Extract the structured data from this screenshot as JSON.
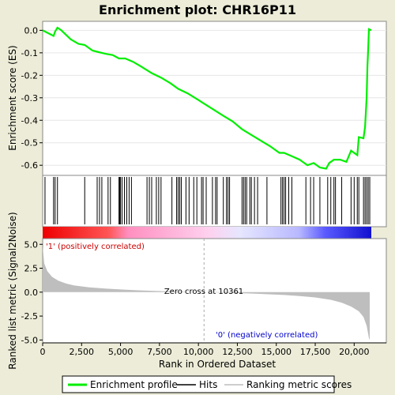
{
  "chart_data": {
    "type": "line",
    "title": "Enrichment plot: CHR16P11",
    "es_panel": {
      "ylabel": "Enrichment score (ES)",
      "yticks": [
        0.0,
        -0.1,
        -0.2,
        -0.3,
        -0.4,
        -0.5,
        -0.6
      ],
      "ytick_labels": [
        "0.0",
        "-0.1",
        "-0.2",
        "-0.3",
        "-0.4",
        "-0.5",
        "-0.6"
      ],
      "ylim": [
        -0.645,
        0.04
      ],
      "series": [
        {
          "name": "Enrichment profile",
          "color": "#00ee00",
          "points": [
            [
              0,
              0.0
            ],
            [
              700,
              -0.025
            ],
            [
              800,
              -0.005
            ],
            [
              950,
              0.012
            ],
            [
              1200,
              0.0
            ],
            [
              1800,
              -0.04
            ],
            [
              2300,
              -0.06
            ],
            [
              2700,
              -0.065
            ],
            [
              3200,
              -0.09
            ],
            [
              3600,
              -0.097
            ],
            [
              4100,
              -0.105
            ],
            [
              4500,
              -0.11
            ],
            [
              4900,
              -0.125
            ],
            [
              5300,
              -0.125
            ],
            [
              5800,
              -0.14
            ],
            [
              6300,
              -0.16
            ],
            [
              7000,
              -0.19
            ],
            [
              7600,
              -0.21
            ],
            [
              8200,
              -0.235
            ],
            [
              8700,
              -0.26
            ],
            [
              9300,
              -0.28
            ],
            [
              10000,
              -0.31
            ],
            [
              10800,
              -0.345
            ],
            [
              11600,
              -0.38
            ],
            [
              12200,
              -0.405
            ],
            [
              12800,
              -0.44
            ],
            [
              13400,
              -0.465
            ],
            [
              14000,
              -0.49
            ],
            [
              14600,
              -0.515
            ],
            [
              15200,
              -0.545
            ],
            [
              15500,
              -0.545
            ],
            [
              16000,
              -0.56
            ],
            [
              16500,
              -0.575
            ],
            [
              17000,
              -0.6
            ],
            [
              17400,
              -0.59
            ],
            [
              17800,
              -0.61
            ],
            [
              18200,
              -0.615
            ],
            [
              18400,
              -0.59
            ],
            [
              18700,
              -0.575
            ],
            [
              19100,
              -0.575
            ],
            [
              19500,
              -0.585
            ],
            [
              19800,
              -0.535
            ],
            [
              20200,
              -0.555
            ],
            [
              20300,
              -0.475
            ],
            [
              20600,
              -0.48
            ],
            [
              20700,
              -0.43
            ],
            [
              20800,
              -0.3
            ],
            [
              20850,
              -0.16
            ],
            [
              20900,
              -0.08
            ],
            [
              20950,
              0.005
            ],
            [
              21100,
              0.0
            ]
          ]
        }
      ]
    },
    "hits": [
      150,
      700,
      800,
      950,
      2700,
      3500,
      3650,
      3800,
      4200,
      4350,
      4900,
      4950,
      5000,
      5100,
      5250,
      5400,
      5550,
      5700,
      6700,
      6850,
      7000,
      7300,
      7450,
      7600,
      8300,
      8600,
      8700,
      8800,
      8900,
      9200,
      9400,
      9700,
      9900,
      10200,
      10300,
      10500,
      10900,
      11100,
      11200,
      11600,
      11800,
      11900,
      12000,
      12800,
      12900,
      13000,
      13100,
      13300,
      13400,
      13600,
      13800,
      14400,
      15300,
      15400,
      15500,
      15600,
      15800,
      16000,
      16900,
      17200,
      17400,
      17800,
      18300,
      18500,
      18700,
      18800,
      19200,
      19800,
      20000,
      20200,
      20300,
      20600,
      20700,
      20800,
      20900,
      21000
    ],
    "metric_panel": {
      "ylabel": "Ranked list metric (Signal2Noise)",
      "yticks": [
        5.0,
        2.5,
        0.0,
        -2.5,
        -5.0
      ],
      "ytick_labels": [
        "5.0",
        "2.5",
        "0.0",
        "-2.5",
        "-5.0"
      ],
      "ylim": [
        -5.3,
        5.6
      ],
      "series": [
        {
          "name": "Ranking metric scores",
          "color": "#bebebe",
          "points": [
            [
              0,
              4.8
            ],
            [
              100,
              3.0
            ],
            [
              300,
              2.2
            ],
            [
              600,
              1.6
            ],
            [
              1000,
              1.2
            ],
            [
              1500,
              0.9
            ],
            [
              2000,
              0.7
            ],
            [
              3000,
              0.5
            ],
            [
              4000,
              0.38
            ],
            [
              5000,
              0.28
            ],
            [
              6000,
              0.2
            ],
            [
              7000,
              0.14
            ],
            [
              8000,
              0.09
            ],
            [
              9000,
              0.05
            ],
            [
              10361,
              0.0
            ],
            [
              11500,
              -0.05
            ],
            [
              12500,
              -0.1
            ],
            [
              13500,
              -0.15
            ],
            [
              14500,
              -0.22
            ],
            [
              15500,
              -0.3
            ],
            [
              16500,
              -0.4
            ],
            [
              17500,
              -0.55
            ],
            [
              18500,
              -0.8
            ],
            [
              19200,
              -1.1
            ],
            [
              19800,
              -1.5
            ],
            [
              20300,
              -2.0
            ],
            [
              20600,
              -2.6
            ],
            [
              20800,
              -3.5
            ],
            [
              20950,
              -4.8
            ],
            [
              21000,
              -5.0
            ]
          ]
        }
      ],
      "zero_cross_label": "Zero cross at 10361",
      "zero_cross": 10361,
      "pos_label": "'1' (positively correlated)",
      "neg_label": "'0' (negatively correlated)"
    },
    "xlabel": "Rank in Ordered Dataset",
    "xticks": [
      0,
      2500,
      5000,
      7500,
      10000,
      12500,
      15000,
      17500,
      20000
    ],
    "xtick_labels": [
      "0",
      "2,500",
      "5,000",
      "7,500",
      "10,000",
      "12,500",
      "15,000",
      "17,500",
      "20,000"
    ],
    "xlim": [
      0,
      21100
    ],
    "legend": {
      "placement": "bottom",
      "items": [
        {
          "label": "Enrichment profile",
          "color": "#00ee00"
        },
        {
          "label": "Hits",
          "color": "#000000"
        },
        {
          "label": "Ranking metric scores",
          "color": "#bebebe"
        }
      ]
    },
    "colorbar_stops": [
      "#ee0000",
      "#ff88bb",
      "#ffc8e8",
      "#e8e8ff",
      "#8888ff",
      "#0000cc"
    ]
  }
}
